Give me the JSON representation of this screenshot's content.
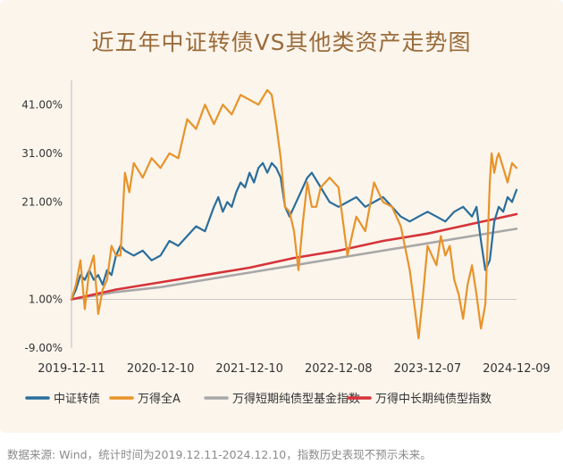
{
  "title": "近五年中证转债VS其他类资产走势图",
  "footer": "数据来源: Wind，统计时间为2019.12.11-2024.12.10，指数历史表现不预示未来。",
  "chart_data": {
    "type": "line",
    "title": "近五年中证转债VS其他类资产走势图",
    "xlabel": "",
    "ylabel": "",
    "ylim": [
      -0.09,
      0.46
    ],
    "ytick_labels": [
      "41.00%",
      "31.00%",
      "21.00%",
      "",
      "1.00%",
      "-9.00%"
    ],
    "ytick_values": [
      0.41,
      0.31,
      0.21,
      0.11,
      0.01,
      -0.09
    ],
    "x_tick_labels": [
      "2019-12-11",
      "2020-12-10",
      "2021-12-10",
      "2022-12-08",
      "2023-12-07",
      "2024-12-09"
    ],
    "x_tick_positions": [
      0,
      1,
      2,
      3,
      4,
      5
    ],
    "x_range": [
      0,
      5
    ],
    "reference_line": 0.01,
    "grid": false,
    "legend_position": "bottom",
    "series": [
      {
        "name": "中证转债",
        "color": "#2b6e9b",
        "x": [
          0,
          0.05,
          0.1,
          0.15,
          0.2,
          0.25,
          0.3,
          0.35,
          0.4,
          0.45,
          0.5,
          0.55,
          0.6,
          0.7,
          0.8,
          0.9,
          1.0,
          1.1,
          1.2,
          1.3,
          1.4,
          1.5,
          1.6,
          1.65,
          1.7,
          1.75,
          1.8,
          1.85,
          1.9,
          1.95,
          2.0,
          2.05,
          2.1,
          2.15,
          2.2,
          2.25,
          2.3,
          2.35,
          2.4,
          2.45,
          2.5,
          2.55,
          2.6,
          2.65,
          2.7,
          2.8,
          2.9,
          3.0,
          3.1,
          3.2,
          3.3,
          3.4,
          3.5,
          3.6,
          3.7,
          3.8,
          3.9,
          4.0,
          4.1,
          4.2,
          4.3,
          4.4,
          4.5,
          4.55,
          4.6,
          4.65,
          4.7,
          4.75,
          4.8,
          4.85,
          4.9,
          4.95,
          5.0
        ],
        "values": [
          0.01,
          0.03,
          0.06,
          0.05,
          0.07,
          0.05,
          0.06,
          0.04,
          0.07,
          0.06,
          0.1,
          0.12,
          0.11,
          0.1,
          0.11,
          0.09,
          0.1,
          0.13,
          0.12,
          0.14,
          0.16,
          0.15,
          0.2,
          0.22,
          0.19,
          0.21,
          0.2,
          0.23,
          0.25,
          0.24,
          0.27,
          0.25,
          0.28,
          0.29,
          0.27,
          0.29,
          0.28,
          0.26,
          0.2,
          0.18,
          0.2,
          0.22,
          0.24,
          0.26,
          0.27,
          0.24,
          0.21,
          0.2,
          0.21,
          0.22,
          0.2,
          0.21,
          0.22,
          0.2,
          0.18,
          0.17,
          0.18,
          0.19,
          0.18,
          0.17,
          0.19,
          0.2,
          0.18,
          0.2,
          0.13,
          0.07,
          0.09,
          0.17,
          0.2,
          0.19,
          0.22,
          0.21,
          0.235
        ]
      },
      {
        "name": "万得全A",
        "color": "#e8932a",
        "x": [
          0,
          0.05,
          0.1,
          0.15,
          0.2,
          0.25,
          0.3,
          0.35,
          0.4,
          0.45,
          0.5,
          0.55,
          0.6,
          0.65,
          0.7,
          0.8,
          0.9,
          1.0,
          1.1,
          1.2,
          1.3,
          1.4,
          1.5,
          1.6,
          1.7,
          1.8,
          1.9,
          2.0,
          2.1,
          2.2,
          2.25,
          2.3,
          2.35,
          2.4,
          2.45,
          2.5,
          2.55,
          2.6,
          2.65,
          2.7,
          2.75,
          2.8,
          2.9,
          3.0,
          3.1,
          3.2,
          3.3,
          3.4,
          3.5,
          3.6,
          3.7,
          3.8,
          3.85,
          3.9,
          3.95,
          4.0,
          4.05,
          4.1,
          4.15,
          4.2,
          4.25,
          4.3,
          4.35,
          4.4,
          4.45,
          4.5,
          4.55,
          4.6,
          4.65,
          4.7,
          4.72,
          4.75,
          4.78,
          4.8,
          4.85,
          4.9,
          4.95,
          5.0
        ],
        "values": [
          0.01,
          0.04,
          0.09,
          -0.01,
          0.07,
          0.1,
          -0.02,
          0.03,
          0.05,
          0.12,
          0.1,
          0.1,
          0.27,
          0.23,
          0.29,
          0.26,
          0.3,
          0.28,
          0.31,
          0.3,
          0.38,
          0.36,
          0.41,
          0.37,
          0.41,
          0.39,
          0.43,
          0.42,
          0.41,
          0.44,
          0.43,
          0.37,
          0.3,
          0.2,
          0.19,
          0.15,
          0.07,
          0.17,
          0.25,
          0.2,
          0.2,
          0.24,
          0.26,
          0.24,
          0.1,
          0.18,
          0.15,
          0.25,
          0.21,
          0.2,
          0.16,
          0.07,
          0.0,
          -0.07,
          0.02,
          0.12,
          0.1,
          0.08,
          0.14,
          0.1,
          0.12,
          0.05,
          0.02,
          -0.03,
          0.04,
          0.08,
          0.02,
          -0.05,
          0.0,
          0.25,
          0.31,
          0.27,
          0.3,
          0.31,
          0.28,
          0.25,
          0.29,
          0.28
        ]
      },
      {
        "name": "万得短期纯债型基金指数",
        "color": "#a8a8a8",
        "x": [
          0,
          0.5,
          1.0,
          1.5,
          2.0,
          2.5,
          3.0,
          3.5,
          4.0,
          4.5,
          5.0
        ],
        "values": [
          0.01,
          0.025,
          0.035,
          0.05,
          0.065,
          0.08,
          0.095,
          0.11,
          0.125,
          0.14,
          0.155
        ]
      },
      {
        "name": "万得中长期纯债型指数",
        "color": "#d6333a",
        "x": [
          0,
          0.5,
          1.0,
          1.5,
          2.0,
          2.5,
          3.0,
          3.5,
          4.0,
          4.5,
          5.0
        ],
        "values": [
          0.01,
          0.03,
          0.045,
          0.06,
          0.075,
          0.095,
          0.11,
          0.13,
          0.145,
          0.165,
          0.185
        ]
      }
    ]
  }
}
